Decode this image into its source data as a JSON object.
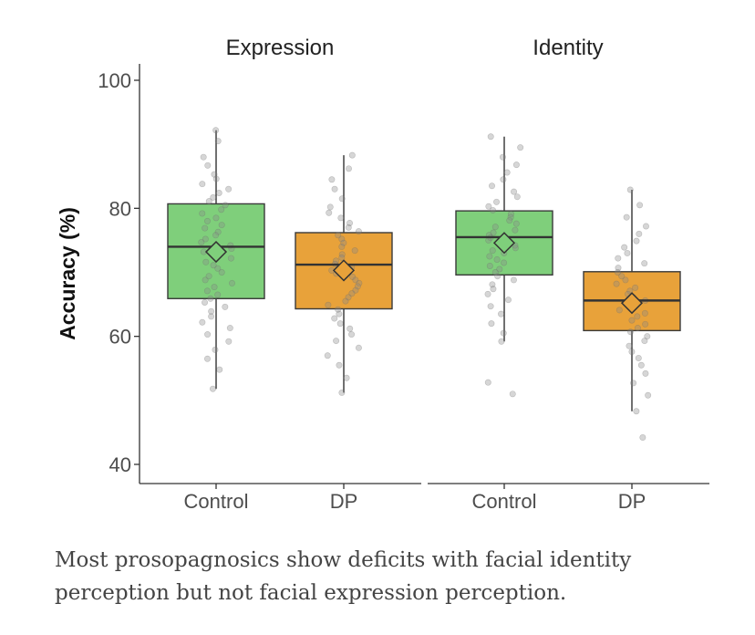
{
  "chart_data": {
    "type": "box",
    "ylabel": "Accuracy (%)",
    "ylim": [
      40,
      100
    ],
    "yticks": [
      40,
      60,
      80,
      100
    ],
    "grid": false,
    "legend": "none",
    "colors": {
      "Control": "#7fcf7b",
      "DP": "#e8a23a",
      "box_stroke": "#3a3a3a",
      "points": "#8a8a8a"
    },
    "facets": [
      {
        "title": "Expression",
        "groups": [
          {
            "category": "Control",
            "q1": 65.9,
            "median": 74.0,
            "q3": 80.7,
            "mean": 73.2,
            "whisker_low": 51.8,
            "whisker_high": 92.2,
            "points": [
              92.2,
              90.5,
              88.0,
              86.7,
              85.3,
              84.6,
              83.8,
              83.0,
              82.4,
              81.7,
              81.1,
              80.5,
              79.8,
              79.2,
              78.5,
              78.0,
              77.4,
              76.9,
              76.3,
              75.8,
              75.2,
              74.7,
              74.2,
              73.7,
              73.2,
              72.7,
              72.2,
              71.6,
              71.1,
              70.6,
              70.0,
              69.4,
              68.8,
              68.3,
              67.7,
              67.1,
              66.5,
              65.9,
              65.3,
              64.6,
              63.9,
              63.1,
              62.2,
              61.3,
              60.3,
              59.2,
              57.9,
              56.5,
              54.8,
              51.8
            ]
          },
          {
            "category": "DP",
            "q1": 64.3,
            "median": 71.2,
            "q3": 76.2,
            "mean": 70.3,
            "whisker_low": 51.2,
            "whisker_high": 88.3,
            "points": [
              88.3,
              86.2,
              84.5,
              83.0,
              81.5,
              80.2,
              79.3,
              78.5,
              77.7,
              77.0,
              76.4,
              75.8,
              75.2,
              74.6,
              74.0,
              73.4,
              72.8,
              72.3,
              71.8,
              71.3,
              70.8,
              70.3,
              69.8,
              69.3,
              68.8,
              68.3,
              67.8,
              67.2,
              66.7,
              66.1,
              65.5,
              64.9,
              64.2,
              63.5,
              62.8,
              62.0,
              61.2,
              60.3,
              59.3,
              58.2,
              57.0,
              55.5,
              53.5,
              51.2
            ]
          }
        ]
      },
      {
        "title": "Identity",
        "groups": [
          {
            "category": "Control",
            "q1": 69.6,
            "median": 75.5,
            "q3": 79.6,
            "mean": 74.6,
            "whisker_low": 59.2,
            "whisker_high": 91.2,
            "points": [
              91.2,
              89.5,
              88.0,
              86.8,
              85.6,
              84.5,
              83.5,
              82.6,
              81.8,
              81.0,
              80.3,
              79.7,
              79.1,
              78.6,
              78.1,
              77.6,
              77.1,
              76.6,
              76.2,
              75.8,
              75.4,
              75.0,
              74.6,
              74.2,
              73.8,
              73.4,
              73.0,
              72.5,
              72.0,
              71.5,
              71.0,
              70.5,
              70.0,
              69.4,
              68.8,
              68.1,
              67.4,
              66.6,
              65.7,
              64.7,
              63.5,
              62.0,
              60.5,
              59.2,
              52.8,
              51.0
            ]
          },
          {
            "category": "DP",
            "q1": 60.9,
            "median": 65.6,
            "q3": 70.1,
            "mean": 65.2,
            "whisker_low": 48.3,
            "whisker_high": 82.9,
            "points": [
              82.9,
              80.5,
              78.6,
              77.2,
              76.0,
              74.9,
              73.9,
              73.0,
              72.2,
              71.4,
              70.7,
              70.0,
              69.4,
              68.8,
              68.2,
              67.6,
              67.1,
              66.6,
              66.1,
              65.6,
              65.1,
              64.6,
              64.1,
              63.6,
              63.1,
              62.5,
              61.9,
              61.3,
              60.7,
              60.0,
              59.3,
              58.5,
              57.6,
              56.6,
              55.5,
              54.2,
              52.7,
              50.8,
              48.3,
              44.2
            ]
          }
        ]
      }
    ]
  },
  "caption": "Most prosopagnosics show deficits with facial identity perception but not facial expression perception."
}
